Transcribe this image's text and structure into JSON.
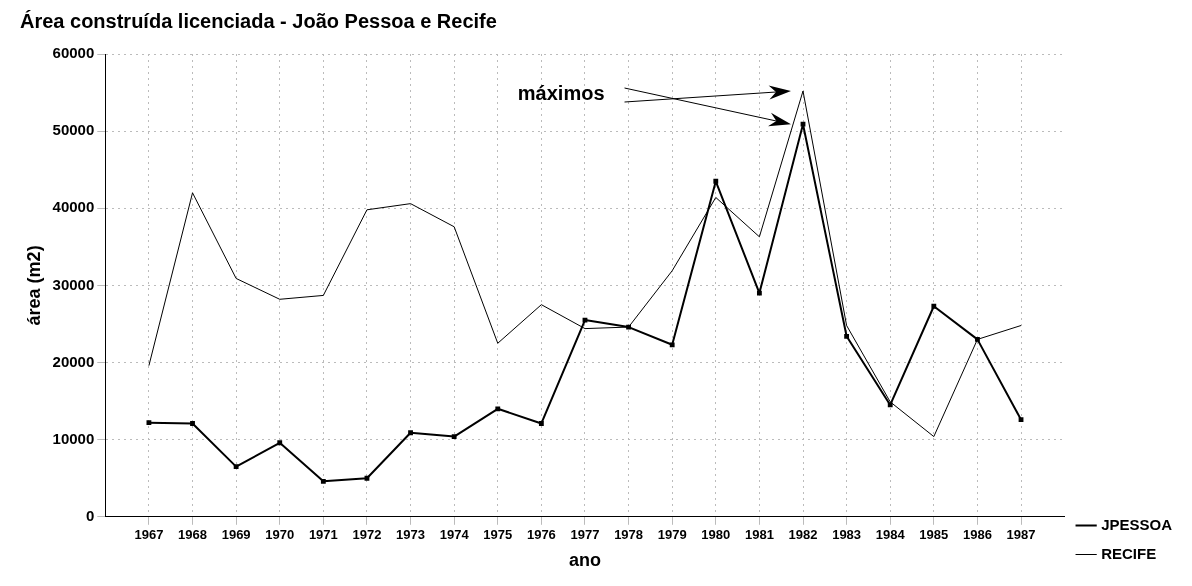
{
  "chart_data": {
    "type": "line",
    "title": "Área construída licenciada - João Pessoa e Recife",
    "xlabel": "ano",
    "ylabel": "área (m2)",
    "x": [
      1967,
      1968,
      1969,
      1970,
      1971,
      1972,
      1973,
      1974,
      1975,
      1976,
      1977,
      1978,
      1979,
      1980,
      1981,
      1982,
      1983,
      1984,
      1985,
      1986,
      1987
    ],
    "xlim": [
      1966,
      1988
    ],
    "xticks": [
      1967,
      1968,
      1969,
      1970,
      1971,
      1972,
      1973,
      1974,
      1975,
      1976,
      1977,
      1978,
      1979,
      1980,
      1981,
      1982,
      1983,
      1984,
      1985,
      1986,
      1987
    ],
    "ylim": [
      0,
      60000
    ],
    "yticks": [
      0,
      10000,
      20000,
      30000,
      40000,
      50000,
      60000
    ],
    "series": [
      {
        "name": "JPESSOA",
        "color": "#000000",
        "marker": "square",
        "values": [
          12200,
          12100,
          6500,
          9600,
          4600,
          5000,
          10900,
          10400,
          14000,
          12100,
          25500,
          24600,
          22300,
          43500,
          29000,
          50900,
          23400,
          14500,
          27300,
          23000,
          12600
        ]
      },
      {
        "name": "RECIFE",
        "color": "#000000",
        "marker": "none",
        "values": [
          19600,
          42000,
          30900,
          28200,
          28700,
          39800,
          40600,
          37600,
          22500,
          27500,
          24400,
          24600,
          31900,
          41400,
          36300,
          55200,
          24800,
          14900,
          10400,
          23000,
          24800
        ]
      }
    ],
    "annotations": [
      "máximos"
    ],
    "grid": true,
    "legend": "bottom right",
    "line_style": "solid"
  }
}
